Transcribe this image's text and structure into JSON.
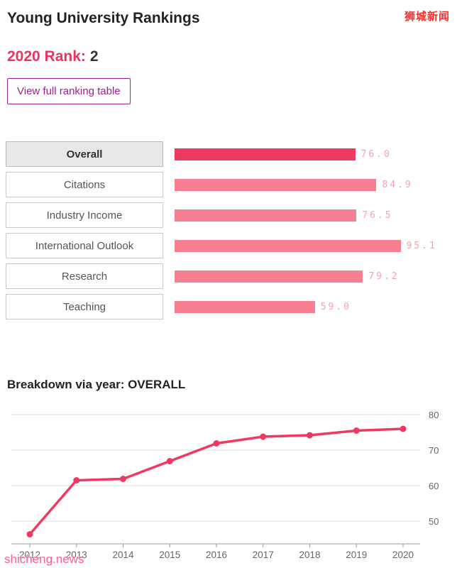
{
  "page": {
    "title": "Young University Rankings",
    "watermark_top": "狮城新闻",
    "watermark_bottom": "shicheng.news"
  },
  "rank": {
    "label": "2020 Rank:",
    "value": "2"
  },
  "actions": {
    "view_table_label": "View full ranking table"
  },
  "colors": {
    "accent": "#ee3a60",
    "bar_light": "#f87e92",
    "bar_selected": "#ee3a60",
    "value_text": "#f6a3b1",
    "button_purple": "#9c2191",
    "grid": "#dddddd",
    "axis": "#999999",
    "tick_label": "#666666"
  },
  "chart_data": [
    {
      "type": "bar",
      "orientation": "horizontal",
      "title": "",
      "categories": [
        "Overall",
        "Citations",
        "Industry Income",
        "International Outlook",
        "Research",
        "Teaching"
      ],
      "values": [
        76.0,
        84.9,
        76.5,
        95.1,
        79.2,
        59.0
      ],
      "value_labels": [
        "76.0",
        "84.9",
        "76.5",
        "95.1",
        "79.2",
        "59.0"
      ],
      "selected_category": "Overall",
      "xlim": [
        0,
        100
      ],
      "grid": false,
      "legend": "none"
    },
    {
      "type": "line",
      "title": "Breakdown via year: OVERALL",
      "x": [
        2012,
        2013,
        2014,
        2015,
        2016,
        2017,
        2018,
        2019,
        2020
      ],
      "values": [
        46.3,
        61.5,
        61.9,
        66.9,
        71.9,
        73.8,
        74.2,
        75.5,
        76.0
      ],
      "ylim": [
        44,
        82
      ],
      "yticks": [
        50,
        60,
        70,
        80
      ],
      "ytick_side": "right",
      "grid": true,
      "legend": "none"
    }
  ]
}
